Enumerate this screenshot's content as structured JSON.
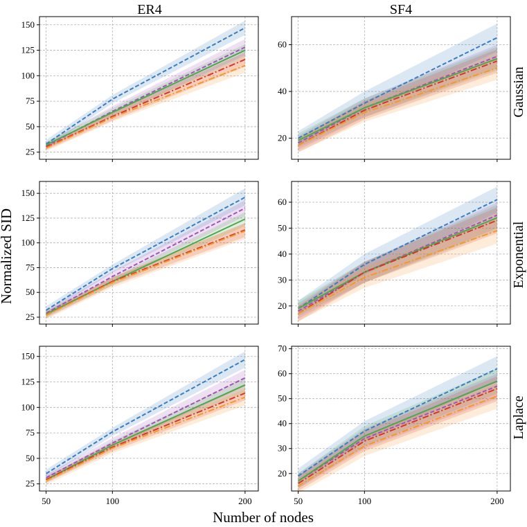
{
  "figure": {
    "xlabel": "Number of nodes",
    "ylabel": "Normalized SID",
    "col_titles": [
      "ER4",
      "SF4"
    ],
    "row_titles": [
      "Gaussian",
      "Exponential",
      "Laplace"
    ]
  },
  "colors": {
    "blue": "#3a7dbf",
    "purple": "#a054b8",
    "green": "#4ca84c",
    "red": "#d9342b",
    "orange": "#f5982a",
    "grid": "#b0b0b0"
  },
  "chart_data": [
    {
      "type": "line",
      "column": "ER4",
      "row": "Gaussian",
      "x": [
        50,
        100,
        200
      ],
      "xticks": [
        50,
        100,
        200
      ],
      "ylim": [
        18,
        158
      ],
      "yticks": [
        25,
        50,
        75,
        100,
        125,
        150
      ],
      "grid": true,
      "series": [
        {
          "name": "blue dashed",
          "color": "blue",
          "dash": "dashed",
          "values": [
            33,
            77,
            147
          ],
          "band": [
            [
              29,
              37
            ],
            [
              73,
              81
            ],
            [
              140,
              154
            ]
          ]
        },
        {
          "name": "purple dashed",
          "color": "purple",
          "dash": "dashed",
          "values": [
            31,
            65,
            128
          ],
          "band": [
            [
              28,
              34
            ],
            [
              60,
              70
            ],
            [
              120,
              136
            ]
          ]
        },
        {
          "name": "green solid",
          "color": "green",
          "dash": "solid",
          "values": [
            32,
            64,
            125
          ],
          "band": [
            [
              29,
              35
            ],
            [
              60,
              68
            ],
            [
              118,
              131
            ]
          ]
        },
        {
          "name": "red dash-dot",
          "color": "red",
          "dash": "dashdot",
          "values": [
            30,
            60,
            116
          ],
          "band": [
            [
              27,
              33
            ],
            [
              56,
              64
            ],
            [
              109,
              123
            ]
          ]
        },
        {
          "name": "orange dash-dot",
          "color": "orange",
          "dash": "dashdot",
          "values": [
            29,
            59,
            110
          ],
          "band": [
            [
              26,
              33
            ],
            [
              55,
              63
            ],
            [
              103,
              118
            ]
          ]
        }
      ]
    },
    {
      "type": "line",
      "column": "SF4",
      "row": "Gaussian",
      "x": [
        50,
        100,
        200
      ],
      "xticks": [
        50,
        100,
        200
      ],
      "ylim": [
        11,
        72
      ],
      "yticks": [
        20,
        40,
        60
      ],
      "grid": true,
      "series": [
        {
          "name": "blue dashed",
          "color": "blue",
          "dash": "dashed",
          "values": [
            20,
            35,
            63
          ],
          "band": [
            [
              17,
              23
            ],
            [
              31,
              40
            ],
            [
              57,
              69
            ]
          ]
        },
        {
          "name": "purple dashed",
          "color": "purple",
          "dash": "dashed",
          "values": [
            18,
            33,
            55
          ],
          "band": [
            [
              15,
              21
            ],
            [
              29,
              37
            ],
            [
              50,
              60
            ]
          ]
        },
        {
          "name": "green solid",
          "color": "green",
          "dash": "solid",
          "values": [
            19,
            33,
            54
          ],
          "band": [
            [
              16,
              22
            ],
            [
              29,
              37
            ],
            [
              49,
              59
            ]
          ]
        },
        {
          "name": "red dash-dot",
          "color": "red",
          "dash": "dashdot",
          "values": [
            17,
            32,
            53
          ],
          "band": [
            [
              14,
              20
            ],
            [
              28,
              36
            ],
            [
              48,
              58
            ]
          ]
        },
        {
          "name": "orange dash-dot",
          "color": "orange",
          "dash": "dashdot",
          "values": [
            17,
            31,
            50
          ],
          "band": [
            [
              14,
              20
            ],
            [
              27,
              35
            ],
            [
              45,
              55
            ]
          ]
        }
      ]
    },
    {
      "type": "line",
      "column": "ER4",
      "row": "Exponential",
      "x": [
        50,
        100,
        200
      ],
      "xticks": [
        50,
        100,
        200
      ],
      "ylim": [
        18,
        162
      ],
      "yticks": [
        25,
        50,
        75,
        100,
        125,
        150
      ],
      "grid": true,
      "series": [
        {
          "name": "blue dashed",
          "color": "blue",
          "dash": "dashed",
          "values": [
            32,
            74,
            146
          ],
          "band": [
            [
              28,
              36
            ],
            [
              70,
              78
            ],
            [
              138,
              155
            ]
          ]
        },
        {
          "name": "purple dashed",
          "color": "purple",
          "dash": "dashed",
          "values": [
            29,
            66,
            135
          ],
          "band": [
            [
              26,
              32
            ],
            [
              61,
              71
            ],
            [
              127,
              143
            ]
          ]
        },
        {
          "name": "green solid",
          "color": "green",
          "dash": "solid",
          "values": [
            28,
            61,
            124
          ],
          "band": [
            [
              25,
              31
            ],
            [
              57,
              65
            ],
            [
              117,
              131
            ]
          ]
        },
        {
          "name": "red dash-dot",
          "color": "red",
          "dash": "dashdot",
          "values": [
            27,
            61,
            113
          ],
          "band": [
            [
              24,
              30
            ],
            [
              57,
              65
            ],
            [
              106,
              120
            ]
          ]
        },
        {
          "name": "orange dash-dot",
          "color": "orange",
          "dash": "dashdot",
          "values": [
            27,
            60,
            112
          ],
          "band": [
            [
              23,
              31
            ],
            [
              55,
              65
            ],
            [
              104,
              120
            ]
          ]
        }
      ]
    },
    {
      "type": "line",
      "column": "SF4",
      "row": "Exponential",
      "x": [
        50,
        100,
        200
      ],
      "xticks": [
        50,
        100,
        200
      ],
      "ylim": [
        13,
        68
      ],
      "yticks": [
        20,
        30,
        40,
        50,
        60
      ],
      "grid": true,
      "series": [
        {
          "name": "blue dashed",
          "color": "blue",
          "dash": "dashed",
          "values": [
            19,
            36,
            61
          ],
          "band": [
            [
              17,
              22
            ],
            [
              32,
              40
            ],
            [
              56,
              66
            ]
          ]
        },
        {
          "name": "purple dashed",
          "color": "purple",
          "dash": "dashed",
          "values": [
            18,
            33,
            55
          ],
          "band": [
            [
              15,
              21
            ],
            [
              29,
              37
            ],
            [
              50,
              60
            ]
          ]
        },
        {
          "name": "green solid",
          "color": "green",
          "dash": "solid",
          "values": [
            19,
            33,
            54
          ],
          "band": [
            [
              16,
              22
            ],
            [
              29,
              37
            ],
            [
              49,
              59
            ]
          ]
        },
        {
          "name": "red dash-dot",
          "color": "red",
          "dash": "dashdot",
          "values": [
            17,
            33,
            53
          ],
          "band": [
            [
              14,
              20
            ],
            [
              29,
              37
            ],
            [
              48,
              58
            ]
          ]
        },
        {
          "name": "orange dash-dot",
          "color": "orange",
          "dash": "dashdot",
          "values": [
            17,
            31,
            49
          ],
          "band": [
            [
              14,
              20
            ],
            [
              27,
              35
            ],
            [
              44,
              54
            ]
          ]
        }
      ]
    },
    {
      "type": "line",
      "column": "ER4",
      "row": "Laplace",
      "x": [
        50,
        100,
        200
      ],
      "xticks": [
        50,
        100,
        200
      ],
      "ylim": [
        18,
        160
      ],
      "yticks": [
        25,
        50,
        75,
        100,
        125,
        150
      ],
      "grid": true,
      "series": [
        {
          "name": "blue dashed",
          "color": "blue",
          "dash": "dashed",
          "values": [
            35,
            76,
            147
          ],
          "band": [
            [
              31,
              39
            ],
            [
              72,
              80
            ],
            [
              139,
              155
            ]
          ]
        },
        {
          "name": "purple dashed",
          "color": "purple",
          "dash": "dashed",
          "values": [
            31,
            65,
            129
          ],
          "band": [
            [
              28,
              34
            ],
            [
              60,
              70
            ],
            [
              121,
              137
            ]
          ]
        },
        {
          "name": "green solid",
          "color": "green",
          "dash": "solid",
          "values": [
            29,
            63,
            122
          ],
          "band": [
            [
              26,
              32
            ],
            [
              59,
              67
            ],
            [
              115,
              129
            ]
          ]
        },
        {
          "name": "red dash-dot",
          "color": "red",
          "dash": "dashdot",
          "values": [
            29,
            61,
            114
          ],
          "band": [
            [
              26,
              32
            ],
            [
              57,
              65
            ],
            [
              107,
              121
            ]
          ]
        },
        {
          "name": "orange dash-dot",
          "color": "orange",
          "dash": "dashdot",
          "values": [
            28,
            60,
            110
          ],
          "band": [
            [
              24,
              32
            ],
            [
              55,
              65
            ],
            [
              102,
              118
            ]
          ]
        }
      ]
    },
    {
      "type": "line",
      "column": "SF4",
      "row": "Laplace",
      "x": [
        50,
        100,
        200
      ],
      "xticks": [
        50,
        100,
        200
      ],
      "ylim": [
        13,
        71
      ],
      "yticks": [
        20,
        30,
        40,
        50,
        60,
        70
      ],
      "grid": true,
      "series": [
        {
          "name": "blue dashed",
          "color": "blue",
          "dash": "dashed",
          "values": [
            19,
            37,
            62
          ],
          "band": [
            [
              16,
              22
            ],
            [
              33,
              41
            ],
            [
              57,
              67
            ]
          ]
        },
        {
          "name": "purple dashed",
          "color": "purple",
          "dash": "dashed",
          "values": [
            17,
            34,
            55
          ],
          "band": [
            [
              14,
              20
            ],
            [
              30,
              38
            ],
            [
              50,
              60
            ]
          ]
        },
        {
          "name": "green solid",
          "color": "green",
          "dash": "solid",
          "values": [
            17,
            35,
            57
          ],
          "band": [
            [
              14,
              20
            ],
            [
              31,
              39
            ],
            [
              52,
              62
            ]
          ]
        },
        {
          "name": "red dash-dot",
          "color": "red",
          "dash": "dashdot",
          "values": [
            16,
            33,
            54
          ],
          "band": [
            [
              13,
              19
            ],
            [
              29,
              37
            ],
            [
              49,
              59
            ]
          ]
        },
        {
          "name": "orange dash-dot",
          "color": "orange",
          "dash": "dashdot",
          "values": [
            15,
            31,
            51
          ],
          "band": [
            [
              12,
              18
            ],
            [
              27,
              35
            ],
            [
              46,
              56
            ]
          ]
        }
      ]
    }
  ]
}
